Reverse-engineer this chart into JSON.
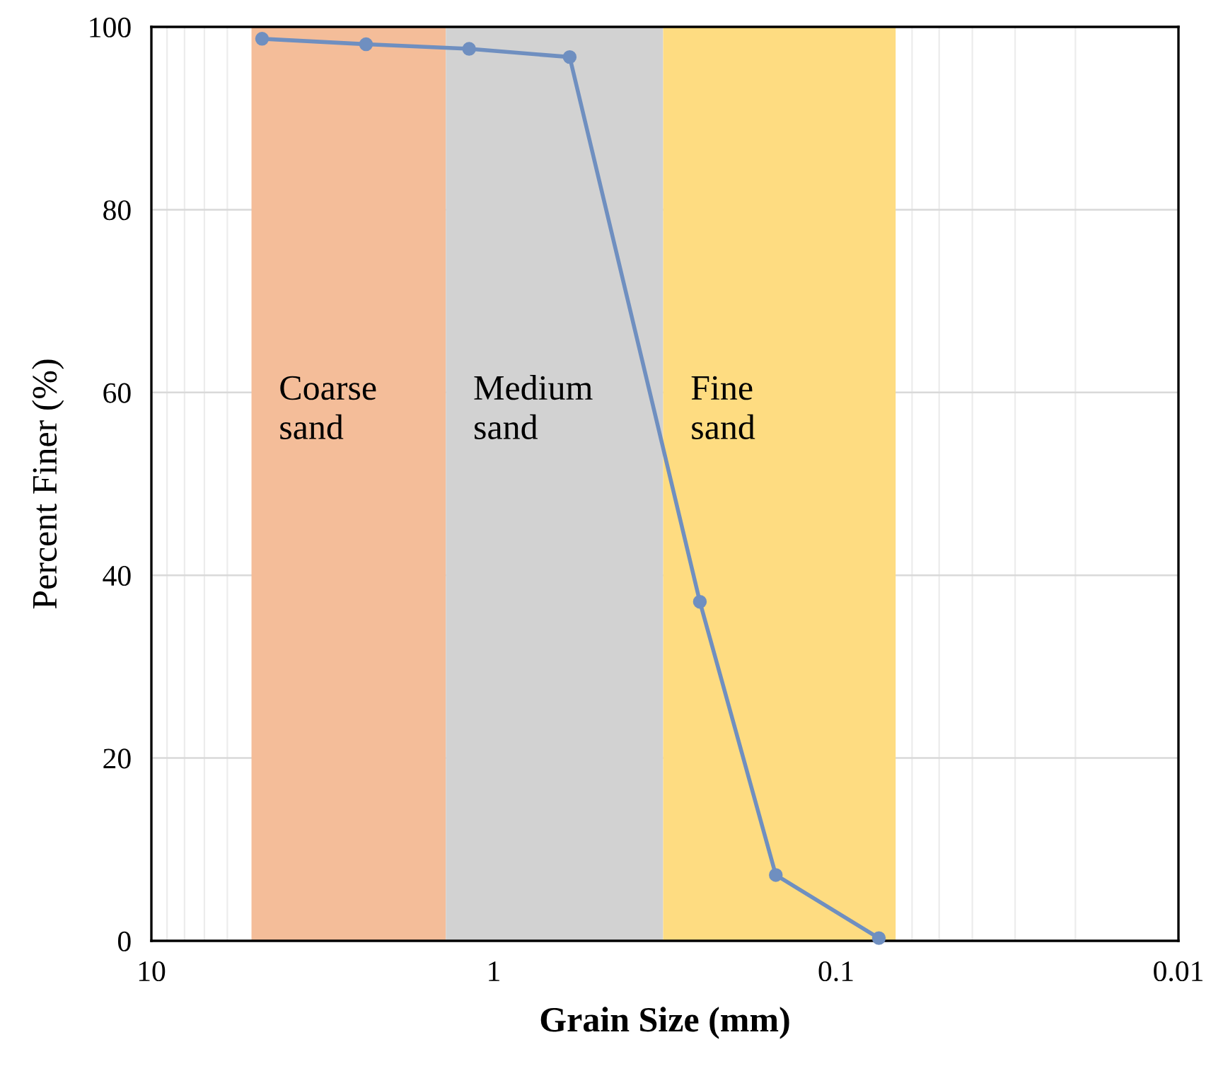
{
  "chart_data": {
    "type": "line",
    "xlabel": "Grain Size (mm)",
    "ylabel": "Percent Finer (%)",
    "x": [
      4.75,
      2.36,
      1.18,
      0.6,
      0.25,
      0.15,
      0.075
    ],
    "series": [
      {
        "color": "#6f8fc0",
        "values": [
          98.7,
          98.1,
          97.6,
          96.7,
          37.1,
          7.2,
          0.3
        ]
      }
    ],
    "log": "x",
    "xlim": [
      10,
      0.01
    ],
    "xticks": [
      10,
      1,
      0.1,
      0.01
    ],
    "ylim": [
      0,
      100
    ],
    "yticks": [
      0,
      20,
      40,
      60,
      80,
      100
    ],
    "grid": true,
    "marker": "circle",
    "line_style": "solid",
    "bands": [
      {
        "axis": "x",
        "from": 5.1,
        "to": 1.38,
        "label": "Coarse\nsand",
        "color": "#f4bd99"
      },
      {
        "axis": "x",
        "from": 1.38,
        "to": 0.32,
        "label": "Medium\nsand",
        "color": "#d2d2d2"
      },
      {
        "axis": "x",
        "from": 0.32,
        "to": 0.067,
        "label": "Fine\nsand",
        "color": "#fedc81"
      }
    ]
  }
}
